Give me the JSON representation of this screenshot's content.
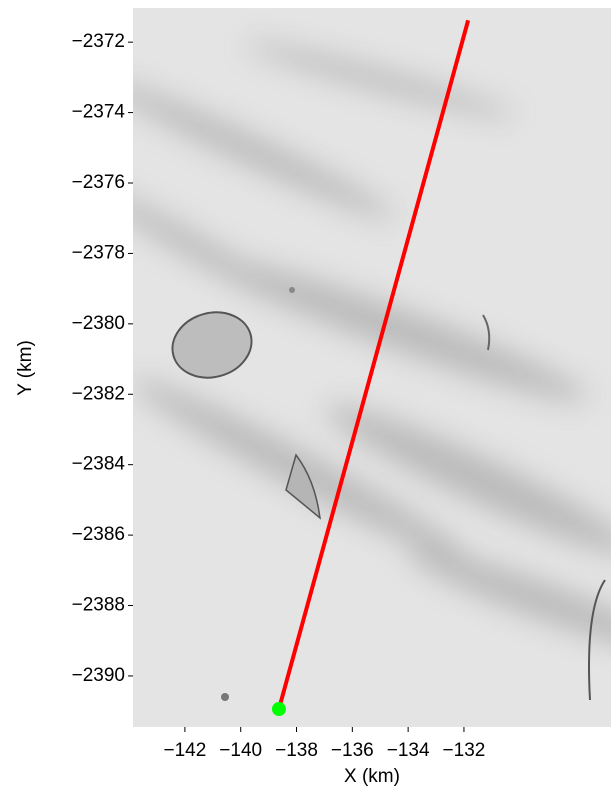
{
  "chart_data": {
    "type": "line",
    "x_label": "X (km)",
    "y_label": "Y (km)",
    "xlim": [
      -143.86,
      -126.73
    ],
    "ylim": [
      -2391.45,
      -2371.03
    ],
    "xticks": [
      {
        "value": -142,
        "label": "−142"
      },
      {
        "value": -140,
        "label": "−140"
      },
      {
        "value": -138,
        "label": "−138"
      },
      {
        "value": -136,
        "label": "−136"
      },
      {
        "value": -134,
        "label": "−134"
      },
      {
        "value": -132,
        "label": "−132"
      }
    ],
    "yticks": [
      {
        "value": -2372,
        "label": "−2372"
      },
      {
        "value": -2374,
        "label": "−2374"
      },
      {
        "value": -2376,
        "label": "−2376"
      },
      {
        "value": -2378,
        "label": "−2378"
      },
      {
        "value": -2380,
        "label": "−2380"
      },
      {
        "value": -2382,
        "label": "−2382"
      },
      {
        "value": -2384,
        "label": "−2384"
      },
      {
        "value": -2386,
        "label": "−2386"
      },
      {
        "value": -2388,
        "label": "−2388"
      },
      {
        "value": -2390,
        "label": "−2390"
      }
    ],
    "series": [
      {
        "color": "#ff0000",
        "x": [
          -138.6,
          -131.85
        ],
        "y": [
          -2390.85,
          -2371.38
        ]
      }
    ],
    "marker": {
      "color": "#00ff00",
      "x": -138.63,
      "y": -2390.94
    }
  }
}
